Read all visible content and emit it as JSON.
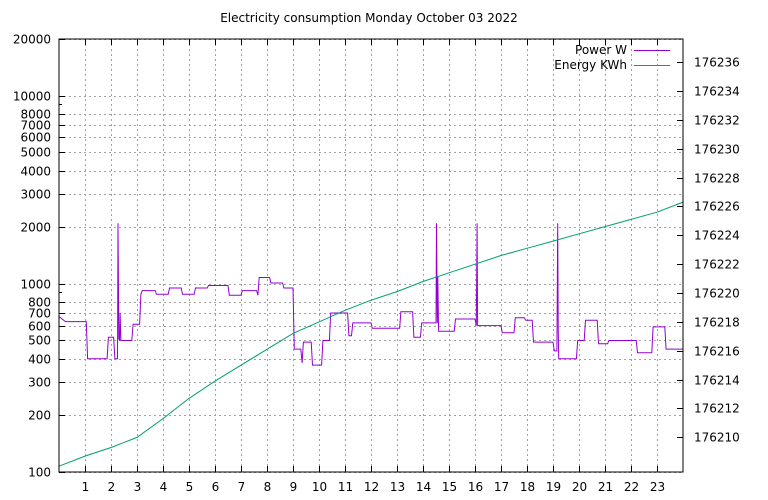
{
  "chart_data": {
    "type": "line",
    "title": "Electricity consumption Monday October 03 2022",
    "xlabel": "",
    "ylabel": "",
    "y2label": "",
    "grid": true,
    "legend_position": "top-right",
    "x_range": [
      0,
      24
    ],
    "x_ticks": [
      "1",
      "2",
      "3",
      "4",
      "5",
      "6",
      "7",
      "8",
      "9",
      "10",
      "11",
      "12",
      "13",
      "14",
      "15",
      "16",
      "17",
      "18",
      "19",
      "20",
      "21",
      "22",
      "23"
    ],
    "y_scale": "log",
    "y_range": [
      100,
      20000
    ],
    "y_ticks": [
      "100",
      "200",
      "300",
      "400",
      "500",
      "600",
      "700",
      "800",
      "1000",
      "2000",
      "3000",
      "4000",
      "5000",
      "6000",
      "7000",
      "8000",
      "10000",
      "20000"
    ],
    "y2_range": [
      176207.6,
      176237.6
    ],
    "y2_ticks": [
      "176210",
      "176212",
      "176214",
      "176216",
      "176218",
      "176220",
      "176222",
      "176224",
      "176226",
      "176228",
      "176230",
      "176232",
      "176234",
      "176236"
    ],
    "series": [
      {
        "name": "Power W",
        "color": "#9400d3",
        "axis": "left",
        "x": [
          0.0,
          0.25,
          1.05,
          1.1,
          1.85,
          1.9,
          2.1,
          2.15,
          2.25,
          2.27,
          2.3,
          2.33,
          2.35,
          2.38,
          2.45,
          2.8,
          2.85,
          3.1,
          3.15,
          3.2,
          3.7,
          3.75,
          4.2,
          4.25,
          4.7,
          4.75,
          5.2,
          5.25,
          5.7,
          5.75,
          6.5,
          6.55,
          7.0,
          7.05,
          7.6,
          7.65,
          7.7,
          8.1,
          8.15,
          8.6,
          8.65,
          9.0,
          9.05,
          9.3,
          9.35,
          9.4,
          9.7,
          9.75,
          10.1,
          10.15,
          10.4,
          10.45,
          11.1,
          11.15,
          11.25,
          11.3,
          12.0,
          12.05,
          13.1,
          13.15,
          13.6,
          13.65,
          13.9,
          13.95,
          14.5,
          14.52,
          14.55,
          14.57,
          14.6,
          14.65,
          15.2,
          15.25,
          16.0,
          16.05,
          16.08,
          16.1,
          16.15,
          16.2,
          17.0,
          17.05,
          17.5,
          17.55,
          17.9,
          17.95,
          18.2,
          18.25,
          19.0,
          19.05,
          19.15,
          19.18,
          19.2,
          19.22,
          19.25,
          19.28,
          19.3,
          19.35,
          19.9,
          19.95,
          20.2,
          20.25,
          20.7,
          20.75,
          21.1,
          21.15,
          22.2,
          22.25,
          22.8,
          22.85,
          23.3,
          23.35,
          24.0
        ],
        "values": [
          670,
          630,
          630,
          400,
          400,
          520,
          520,
          400,
          400,
          2100,
          510,
          500,
          700,
          500,
          500,
          500,
          610,
          610,
          880,
          920,
          920,
          880,
          880,
          950,
          950,
          880,
          880,
          950,
          950,
          980,
          980,
          870,
          870,
          920,
          920,
          870,
          1080,
          1080,
          1010,
          1010,
          950,
          950,
          450,
          450,
          380,
          490,
          490,
          370,
          370,
          500,
          500,
          700,
          700,
          530,
          530,
          620,
          620,
          580,
          580,
          710,
          710,
          520,
          520,
          620,
          620,
          2100,
          620,
          1100,
          560,
          560,
          560,
          650,
          650,
          600,
          2100,
          600,
          600,
          600,
          600,
          550,
          550,
          660,
          660,
          640,
          640,
          490,
          490,
          440,
          440,
          2100,
          590,
          400,
          400,
          400,
          400,
          400,
          400,
          500,
          500,
          640,
          640,
          480,
          480,
          500,
          500,
          430,
          430,
          590,
          590,
          450,
          450
        ]
      },
      {
        "name": "Energy KWh",
        "color": "#009e73",
        "axis": "right",
        "x": [
          0,
          1,
          2,
          3,
          4,
          5,
          6,
          7,
          8,
          9,
          10,
          11,
          12,
          13,
          14,
          15,
          16,
          17,
          18,
          19,
          20,
          21,
          22,
          23,
          24
        ],
        "values": [
          176208.0,
          176208.7,
          176209.3,
          176210.0,
          176211.3,
          176212.7,
          176213.9,
          176215.0,
          176216.1,
          176217.2,
          176218.0,
          176218.8,
          176219.5,
          176220.1,
          176220.8,
          176221.4,
          176222.0,
          176222.6,
          176223.1,
          176223.6,
          176224.1,
          176224.6,
          176225.1,
          176225.6,
          176226.3
        ]
      }
    ]
  }
}
